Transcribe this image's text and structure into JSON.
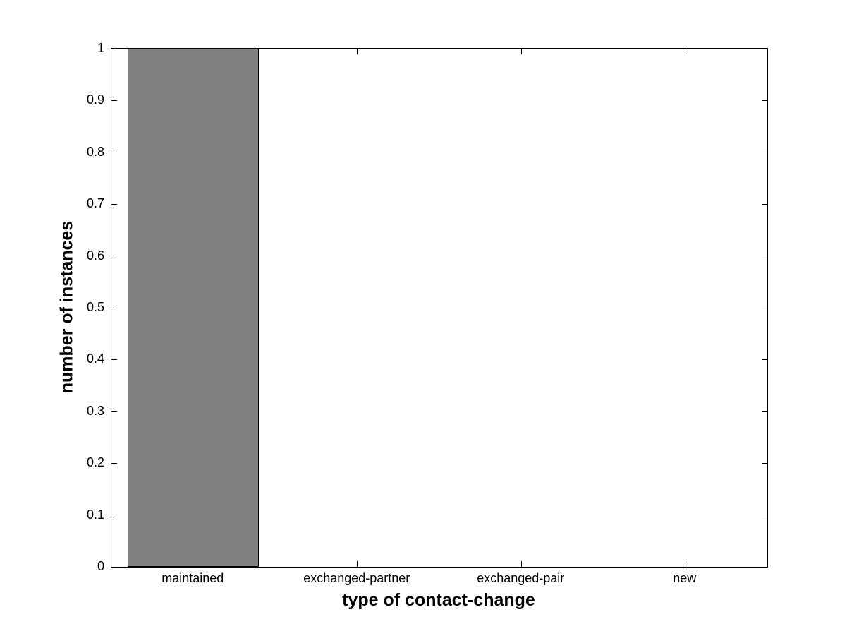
{
  "chart_data": {
    "type": "bar",
    "title": "",
    "categories": [
      "maintained",
      "exchanged-partner",
      "exchanged-pair",
      "new"
    ],
    "values": [
      1,
      0,
      0,
      0
    ],
    "xlabel": "type of contact-change",
    "ylabel": "number of instances",
    "ylim": [
      0,
      1
    ],
    "yticks": [
      0,
      0.1,
      0.2,
      0.3,
      0.4,
      0.5,
      0.6,
      0.7,
      0.8,
      0.9,
      1
    ],
    "ytick_labels": [
      "0",
      "0.1",
      "0.2",
      "0.3",
      "0.4",
      "0.5",
      "0.6",
      "0.7",
      "0.8",
      "0.9",
      "1"
    ],
    "grid": false,
    "legend": null,
    "box": true,
    "tick_direction": "in",
    "bar_width_fraction": 0.8,
    "colors": {
      "bar_fill": "#808080",
      "bar_edge": "#000000",
      "axis": "#000000",
      "background": "#ffffff",
      "text": "#000000"
    }
  }
}
